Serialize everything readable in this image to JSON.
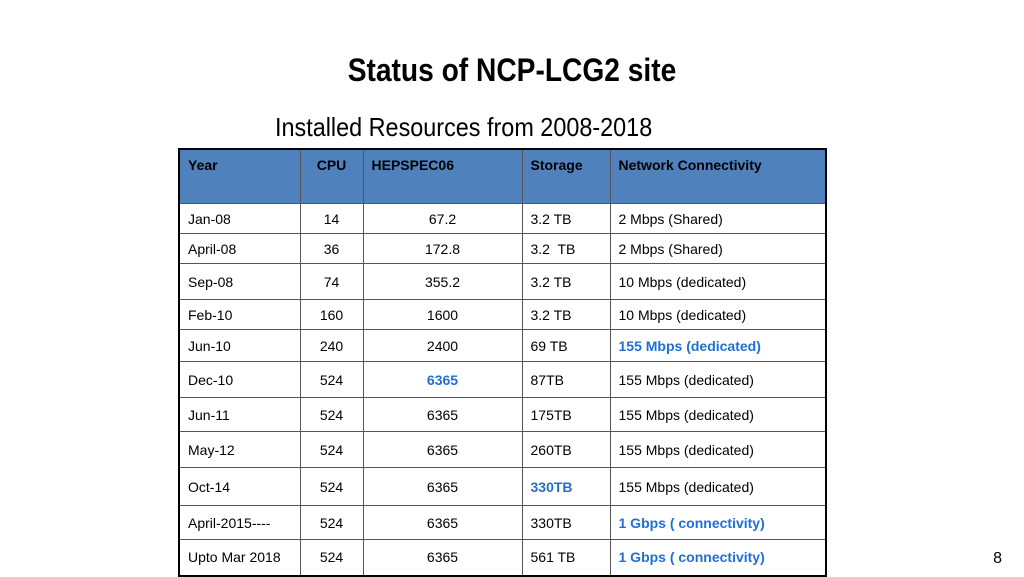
{
  "title": "Status of NCP-LCG2 site",
  "subtitle": "Installed Resources from 2008-2018",
  "table": {
    "headers": [
      "Year",
      "CPU",
      "HEPSPEC06",
      "Storage",
      "Network Connectivity"
    ],
    "rows": [
      [
        "Jan-08",
        "14",
        "67.2",
        "3.2 TB",
        "2 Mbps (Shared)"
      ],
      [
        "April-08",
        "36",
        "172.8",
        "3.2  TB",
        "2 Mbps (Shared)"
      ],
      [
        "Sep-08",
        "74",
        "355.2",
        "3.2 TB",
        "10 Mbps (dedicated)"
      ],
      [
        "Feb-10",
        "160",
        "1600",
        "3.2 TB",
        "10 Mbps (dedicated)"
      ],
      [
        "Jun-10",
        "240",
        "2400",
        "69 TB",
        "155 Mbps (dedicated)"
      ],
      [
        "Dec-10",
        "524",
        "6365",
        "87TB",
        "155 Mbps (dedicated)"
      ],
      [
        "Jun-11",
        "524",
        "6365",
        "175TB",
        "155 Mbps (dedicated)"
      ],
      [
        "May-12",
        "524",
        "6365",
        "260TB",
        "155 Mbps (dedicated)"
      ],
      [
        "Oct-14",
        "524",
        "6365",
        "330TB",
        "155 Mbps (dedicated)"
      ],
      [
        "April-2015----",
        "524",
        "6365",
        "330TB",
        "1 Gbps ( connectivity)"
      ],
      [
        "Upto Mar 2018",
        "524",
        "6365",
        "561 TB",
        "1 Gbps ( connectivity)"
      ]
    ],
    "highlights": [
      [
        4,
        4
      ],
      [
        5,
        2
      ],
      [
        8,
        3
      ],
      [
        9,
        4
      ],
      [
        10,
        4
      ]
    ],
    "highlight_color": "#1f6fd6",
    "header_color": "#4f81bd"
  },
  "page_number": "8"
}
